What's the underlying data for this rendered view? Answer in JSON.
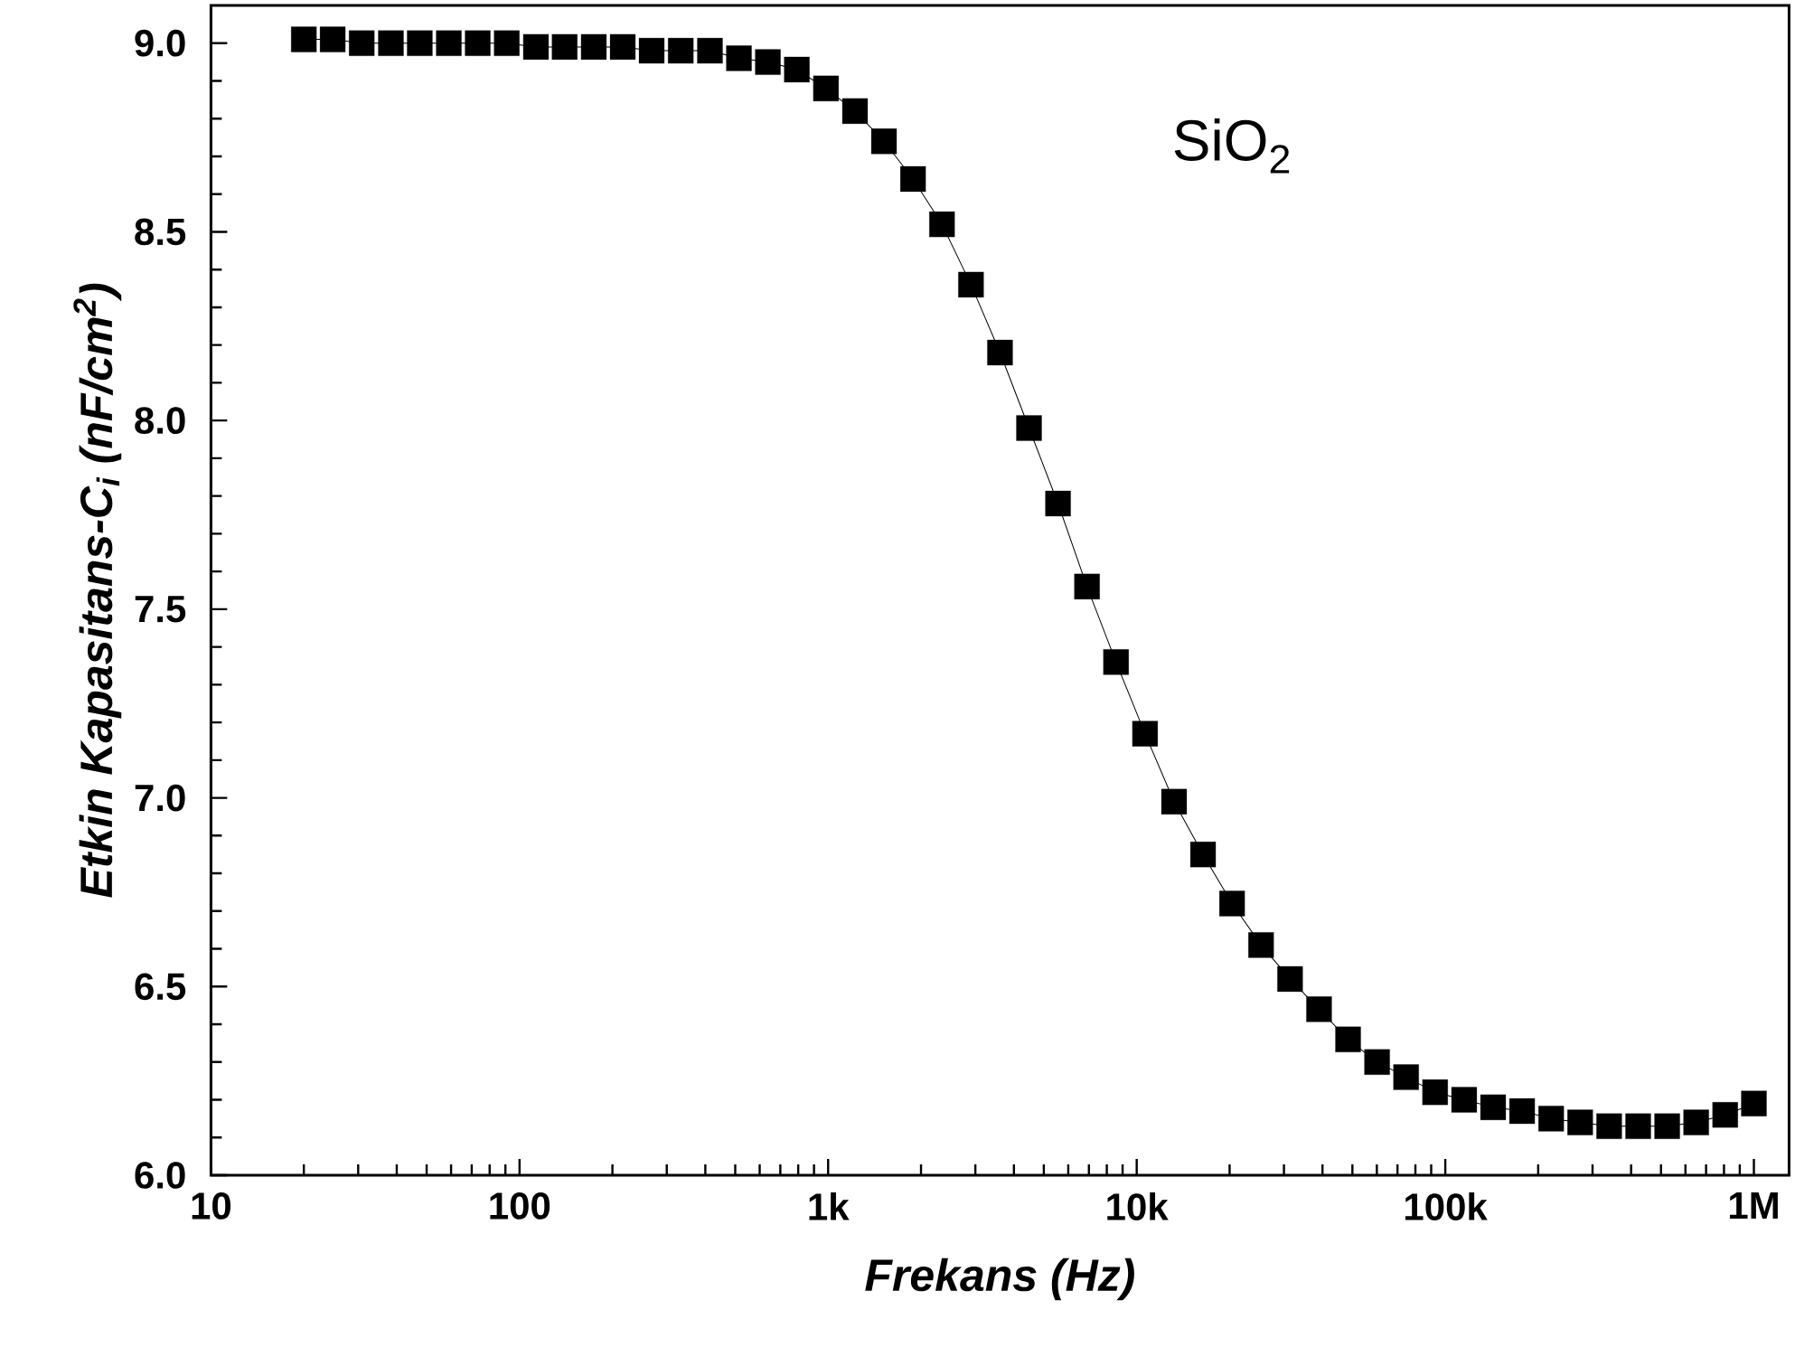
{
  "chart_data": {
    "type": "line",
    "xlabel": "Frekans (Hz)",
    "ylabel": "Etkin Kapasitans-C$_{i}$ (nF/cm$^{2}$)",
    "annotations": [
      "SiO$_{2}$"
    ],
    "log": "x",
    "x": [
      20,
      24.8,
      30.8,
      38.3,
      47.5,
      59.0,
      73.2,
      90.9,
      113,
      140,
      174,
      216,
      268,
      333,
      414,
      514,
      638,
      792,
      984,
      1222,
      1517,
      1884,
      2339,
      2904,
      3606,
      4477,
      5559,
      6902,
      8570,
      10641,
      13212,
      16405,
      20370,
      25290,
      31400,
      38990,
      48410,
      60110,
      74640,
      92670,
      115100,
      142900,
      177400,
      220300,
      273500,
      339600,
      421700,
      523600,
      650100,
      807200,
      1000000
    ],
    "series": [
      {
        "color": "#000000",
        "marker": "square",
        "line_style": "solid",
        "values": [
          9.01,
          9.01,
          9.0,
          9.0,
          9.0,
          9.0,
          9.0,
          9.0,
          8.99,
          8.99,
          8.99,
          8.99,
          8.98,
          8.98,
          8.98,
          8.96,
          8.95,
          8.93,
          8.88,
          8.82,
          8.74,
          8.64,
          8.52,
          8.36,
          8.18,
          7.98,
          7.78,
          7.56,
          7.36,
          7.17,
          6.99,
          6.85,
          6.72,
          6.61,
          6.52,
          6.44,
          6.36,
          6.3,
          6.26,
          6.22,
          6.2,
          6.18,
          6.17,
          6.15,
          6.14,
          6.13,
          6.13,
          6.13,
          6.14,
          6.16,
          6.19
        ]
      }
    ],
    "xlim": [
      10,
      1300000
    ],
    "xticks": [
      10,
      100,
      {
        "value": 1000,
        "label": "1k"
      },
      {
        "value": 10000,
        "label": "10k"
      },
      {
        "value": 100000,
        "label": "100k"
      },
      {
        "value": 1000000,
        "label": "1M"
      },
      {
        "value": 20,
        "label": null
      },
      {
        "value": 30,
        "label": null
      },
      {
        "value": 40,
        "label": null
      },
      {
        "value": 50,
        "label": null
      },
      {
        "value": 60,
        "label": null
      },
      {
        "value": 70,
        "label": null
      },
      {
        "value": 80,
        "label": null
      },
      {
        "value": 90,
        "label": null
      },
      {
        "value": 200,
        "label": null
      },
      {
        "value": 300,
        "label": null
      },
      {
        "value": 400,
        "label": null
      },
      {
        "value": 500,
        "label": null
      },
      {
        "value": 600,
        "label": null
      },
      {
        "value": 700,
        "label": null
      },
      {
        "value": 800,
        "label": null
      },
      {
        "value": 900,
        "label": null
      },
      {
        "value": 2000,
        "label": null
      },
      {
        "value": 3000,
        "label": null
      },
      {
        "value": 4000,
        "label": null
      },
      {
        "value": 5000,
        "label": null
      },
      {
        "value": 6000,
        "label": null
      },
      {
        "value": 7000,
        "label": null
      },
      {
        "value": 8000,
        "label": null
      },
      {
        "value": 9000,
        "label": null
      },
      {
        "value": 20000,
        "label": null
      },
      {
        "value": 30000,
        "label": null
      },
      {
        "value": 40000,
        "label": null
      },
      {
        "value": 50000,
        "label": null
      },
      {
        "value": 60000,
        "label": null
      },
      {
        "value": 70000,
        "label": null
      },
      {
        "value": 80000,
        "label": null
      },
      {
        "value": 90000,
        "label": null
      },
      {
        "value": 200000,
        "label": null
      },
      {
        "value": 300000,
        "label": null
      },
      {
        "value": 400000,
        "label": null
      },
      {
        "value": 500000,
        "label": null
      },
      {
        "value": 600000,
        "label": null
      },
      {
        "value": 700000,
        "label": null
      },
      {
        "value": 800000,
        "label": null
      },
      {
        "value": 900000,
        "label": null
      }
    ],
    "ylim": [
      6.0,
      9.1
    ],
    "yticks": [
      {
        "value": 6.0,
        "label": "6.0"
      },
      {
        "value": 6.1,
        "label": null
      },
      {
        "value": 6.2,
        "label": null
      },
      {
        "value": 6.3,
        "label": null
      },
      {
        "value": 6.4,
        "label": null
      },
      {
        "value": 6.5,
        "label": "6.5"
      },
      {
        "value": 6.6,
        "label": null
      },
      {
        "value": 6.7,
        "label": null
      },
      {
        "value": 6.8,
        "label": null
      },
      {
        "value": 6.9,
        "label": null
      },
      {
        "value": 7.0,
        "label": "7.0"
      },
      {
        "value": 7.1,
        "label": null
      },
      {
        "value": 7.2,
        "label": null
      },
      {
        "value": 7.3,
        "label": null
      },
      {
        "value": 7.4,
        "label": null
      },
      {
        "value": 7.5,
        "label": "7.5"
      },
      {
        "value": 7.6,
        "label": null
      },
      {
        "value": 7.7,
        "label": null
      },
      {
        "value": 7.8,
        "label": null
      },
      {
        "value": 7.9,
        "label": null
      },
      {
        "value": 8.0,
        "label": "8.0"
      },
      {
        "value": 8.1,
        "label": null
      },
      {
        "value": 8.2,
        "label": null
      },
      {
        "value": 8.3,
        "label": null
      },
      {
        "value": 8.4,
        "label": null
      },
      {
        "value": 8.5,
        "label": "8.5"
      },
      {
        "value": 8.6,
        "label": null
      },
      {
        "value": 8.7,
        "label": null
      },
      {
        "value": 8.8,
        "label": null
      },
      {
        "value": 8.9,
        "label": null
      },
      {
        "value": 9.0,
        "label": "9.0"
      }
    ]
  }
}
